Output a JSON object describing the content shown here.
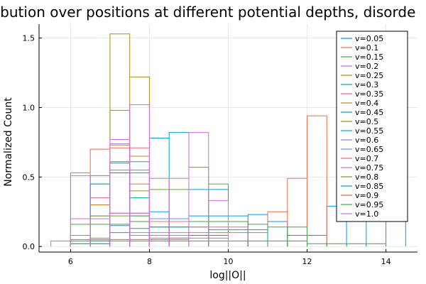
{
  "chart_data": {
    "type": "histogram",
    "title": "ibution over positions at different potential depths, disorde",
    "xlabel": "log||O||",
    "ylabel": "Normalized Count",
    "xlim": [
      5.2,
      14.8
    ],
    "ylim": [
      -0.04,
      1.6
    ],
    "xticks": [
      6,
      8,
      10,
      12,
      14
    ],
    "yticks": [
      0.0,
      0.5,
      1.0,
      1.5
    ],
    "ytick_labels": [
      "0.0",
      "0.5",
      "1.0",
      "1.5"
    ],
    "grid": true,
    "legend_position": "top-right",
    "series": [
      {
        "name": "v=0.05",
        "color": "#009AFA",
        "edges": [
          6.5,
          7.0,
          7.5,
          8.0,
          8.5,
          9.0,
          9.5,
          10.0,
          10.5,
          11.0,
          11.5,
          12.0,
          12.5,
          13.0,
          13.5,
          14.0,
          14.5
        ],
        "values": [
          0.02,
          0.15,
          0.22,
          0.25,
          0.2,
          0.22,
          0.22,
          0.22,
          0.23,
          0.18,
          0.08,
          0.08,
          0.29,
          0.29,
          0.29,
          0.45
        ]
      },
      {
        "name": "v=0.1",
        "color": "#E36F47",
        "edges": [
          5.5,
          6.0,
          6.5,
          7.0,
          7.5,
          8.0,
          8.5,
          9.0,
          9.5,
          10.0,
          10.5,
          11.0,
          11.5,
          12.0,
          12.5
        ],
        "values": [
          0.04,
          0.53,
          0.7,
          0.53,
          0.45,
          0.08,
          0.08,
          0.1,
          0.1,
          0.1,
          0.1,
          0.25,
          0.49,
          0.94
        ]
      },
      {
        "name": "v=0.15",
        "color": "#3EA44E",
        "edges": [
          6.0,
          6.5,
          7.0,
          7.5,
          8.0,
          8.5,
          9.0,
          9.5,
          10.0,
          10.5,
          11.0,
          11.5,
          12.0,
          12.5,
          13.0,
          13.5,
          14.0
        ],
        "values": [
          0.16,
          0.16,
          0.16,
          0.18,
          0.18,
          0.2,
          0.18,
          0.18,
          0.18,
          0.16,
          0.14,
          0.14,
          0.02,
          0.02,
          0.02,
          0.02
        ]
      },
      {
        "name": "v=0.2",
        "color": "#C271D2",
        "edges": [
          6.0,
          6.5,
          7.0,
          7.5,
          8.0,
          8.5,
          9.0,
          9.5,
          10.0
        ],
        "values": [
          0.51,
          0.51,
          0.55,
          0.08,
          0.08,
          0.06,
          0.08,
          0.08
        ]
      },
      {
        "name": "v=0.25",
        "color": "#AC8D18",
        "edges": [
          7.0,
          7.5,
          8.0
        ],
        "values": [
          1.53,
          1.22
        ]
      },
      {
        "name": "v=0.3",
        "color": "#00A9AD",
        "edges": [
          6.5,
          7.0,
          7.5,
          8.0,
          8.5,
          9.0,
          9.5,
          10.0,
          10.5,
          11.0
        ],
        "values": [
          0.04,
          0.1,
          0.13,
          0.14,
          0.14,
          0.14,
          0.12,
          0.12,
          0.12
        ]
      },
      {
        "name": "v=0.35",
        "color": "#ED5E93",
        "edges": [
          6.0,
          6.5,
          7.0,
          7.5,
          8.0,
          8.5,
          9.0,
          9.5,
          10.0
        ],
        "values": [
          0.08,
          0.35,
          0.55,
          0.55,
          0.06,
          0.06,
          0.06,
          0.06
        ]
      },
      {
        "name": "v=0.4",
        "color": "#C68125",
        "edges": [
          6.5,
          7.0,
          7.5,
          8.0
        ],
        "values": [
          0.3,
          0.73,
          0.65
        ]
      },
      {
        "name": "v=0.45",
        "color": "#00A98D",
        "edges": [
          6.5,
          7.0,
          7.5,
          8.0,
          8.5,
          9.0
        ],
        "values": [
          0.45,
          0.6,
          0.35,
          0.14,
          0.14
        ]
      },
      {
        "name": "v=0.5",
        "color": "#8E971E",
        "edges": [
          6.5,
          7.0,
          7.5,
          8.0
        ],
        "values": [
          0.06,
          0.98,
          0.4
        ]
      },
      {
        "name": "v=0.55",
        "color": "#00A8CB",
        "edges": [
          6.0,
          6.5,
          7.0,
          7.5,
          8.0,
          8.5,
          9.0,
          9.5,
          10.0
        ],
        "values": [
          0.02,
          0.45,
          0.61,
          0.61,
          0.08,
          0.08,
          0.08,
          0.08
        ]
      },
      {
        "name": "v=0.6",
        "color": "#9B7FE9",
        "edges": [
          6.5,
          7.0,
          7.5,
          8.0,
          8.5,
          9.0
        ],
        "values": [
          0.51,
          0.74,
          0.1,
          0.1,
          0.1
        ]
      },
      {
        "name": "v=0.65",
        "color": "#618DF6",
        "edges": [
          6.5,
          7.0,
          7.5,
          8.0,
          8.5,
          9.0
        ],
        "values": [
          0.2,
          0.24,
          0.24,
          0.2,
          0.2
        ]
      },
      {
        "name": "v=0.7",
        "color": "#F16C6D",
        "edges": [
          7.0,
          7.5,
          8.0,
          8.5,
          9.0
        ],
        "values": [
          0.71,
          0.71,
          0.18,
          0.18
        ]
      },
      {
        "name": "v=0.75",
        "color": "#DD64B5",
        "edges": [
          6.5,
          7.0,
          7.5,
          8.0,
          8.5,
          9.0,
          9.5,
          10.0,
          10.5
        ],
        "values": [
          0.22,
          0.24,
          0.24,
          0.08,
          0.08,
          0.14,
          0.14,
          0.14
        ]
      },
      {
        "name": "v=0.8",
        "color": "#6B9E32",
        "edges": [
          6.5,
          7.0,
          7.5,
          8.0,
          8.5,
          9.0,
          9.5,
          10.0
        ],
        "values": [
          0.22,
          0.22,
          0.22,
          0.41,
          0.41,
          0.57,
          0.45
        ]
      },
      {
        "name": "v=0.85",
        "color": "#00A4BF",
        "edges": [
          6.0,
          6.5,
          7.0,
          7.5,
          8.0,
          8.5,
          9.0,
          9.5,
          10.0
        ],
        "values": [
          0.04,
          0.04,
          0.53,
          0.53,
          0.78,
          0.82,
          0.41,
          0.41
        ]
      },
      {
        "name": "v=0.9",
        "color": "#E85E3F",
        "edges": [
          6.0,
          6.5,
          7.0,
          7.5,
          8.0,
          8.5,
          9.0
        ],
        "values": [
          0.05,
          0.05,
          0.05,
          0.05,
          0.05,
          0.05
        ]
      },
      {
        "name": "v=0.95",
        "color": "#4B9F49",
        "edges": [
          6.0,
          6.5,
          7.0,
          7.5,
          8.0,
          8.5,
          9.0,
          9.5,
          10.0,
          10.5,
          11.0,
          11.5,
          12.0
        ],
        "values": [
          0.02,
          0.02,
          0.04,
          0.04,
          0.04,
          0.04,
          0.04,
          0.04,
          0.04,
          0.04,
          0.04,
          0.04
        ]
      },
      {
        "name": "v=1.0",
        "color": "#D66ED6",
        "edges": [
          6.0,
          6.5,
          7.0,
          7.5,
          8.0,
          8.5,
          9.0,
          9.5,
          10.0
        ],
        "values": [
          0.2,
          0.2,
          0.77,
          1.02,
          0.49,
          0.49,
          0.82,
          0.33
        ]
      }
    ]
  }
}
